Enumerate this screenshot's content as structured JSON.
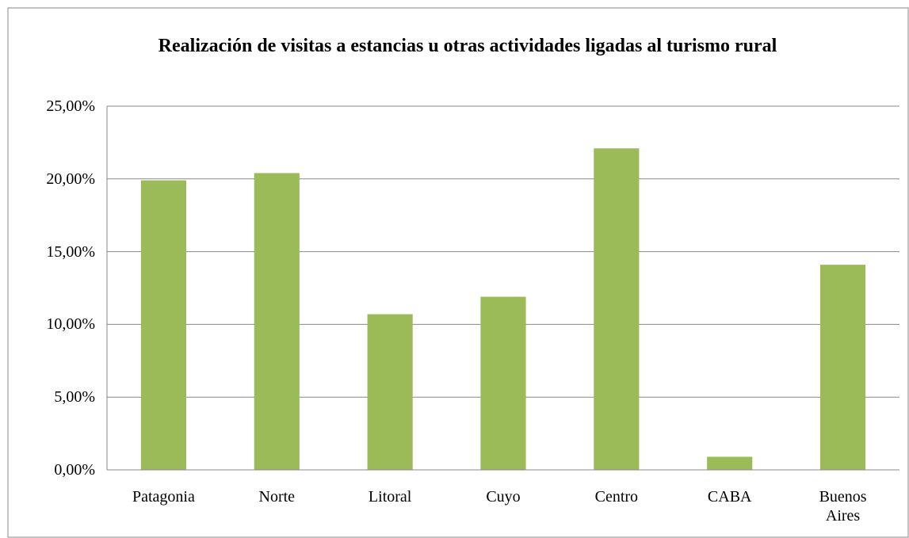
{
  "chart_data": {
    "type": "bar",
    "title": "Realización de visitas a estancias u otras actividades ligadas al turismo rural",
    "categories": [
      "Patagonia",
      "Norte",
      "Litoral",
      "Cuyo",
      "Centro",
      "CABA",
      "Buenos Aires"
    ],
    "values": [
      19.9,
      20.4,
      10.7,
      11.9,
      22.1,
      0.9,
      14.1
    ],
    "color": "#9bbb59",
    "ylim": [
      0,
      25
    ],
    "yticks": [
      {
        "value": 0,
        "label": "0,00%"
      },
      {
        "value": 5,
        "label": "5,00%"
      },
      {
        "value": 10,
        "label": "10,00%"
      },
      {
        "value": 15,
        "label": "15,00%"
      },
      {
        "value": 20,
        "label": "20,00%"
      },
      {
        "value": 25,
        "label": "25,00%"
      }
    ],
    "grid": true
  }
}
